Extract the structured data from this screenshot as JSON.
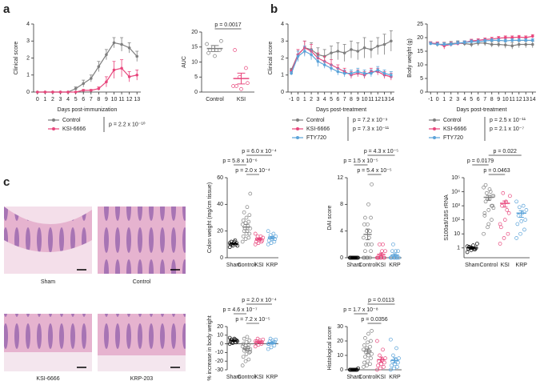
{
  "panel_labels": [
    "a",
    "b",
    "c"
  ],
  "histology": {
    "labels": [
      "Sham",
      "Control",
      "KSI-6666",
      "KRP-203"
    ]
  },
  "chart_data": [
    {
      "type": "line",
      "y_label": "Clinical score",
      "x_label": "Days post-immunization",
      "x": [
        0,
        1,
        2,
        3,
        4,
        5,
        6,
        7,
        8,
        9,
        10,
        11,
        12,
        13
      ],
      "xlim": [
        -0.5,
        13.5
      ],
      "xticks": [
        0,
        1,
        2,
        3,
        4,
        5,
        6,
        7,
        8,
        9,
        10,
        11,
        12,
        13
      ],
      "ylim": [
        0,
        4
      ],
      "yticks": [
        0,
        1,
        2,
        3,
        4
      ],
      "series": [
        {
          "name": "Control",
          "color": "#7f7f7f",
          "values": [
            0,
            0,
            0,
            0,
            0,
            0.2,
            0.5,
            0.8,
            1.5,
            2.2,
            2.9,
            2.8,
            2.6,
            2.1
          ],
          "errors": [
            0,
            0,
            0,
            0,
            0,
            0.1,
            0.2,
            0.2,
            0.3,
            0.3,
            0.3,
            0.4,
            0.3,
            0.3
          ]
        },
        {
          "name": "KSI-6666",
          "color": "#e8467c",
          "values": [
            0,
            0,
            0,
            0,
            0,
            0,
            0.1,
            0.1,
            0.2,
            0.6,
            1.3,
            1.4,
            0.9,
            1.0
          ],
          "errors": [
            0,
            0,
            0,
            0,
            0,
            0,
            0.05,
            0.05,
            0.1,
            0.3,
            0.5,
            0.5,
            0.3,
            0.3
          ]
        }
      ],
      "legend_p": [
        "p = 2.2 x 10⁻¹⁰"
      ]
    },
    {
      "type": "dot",
      "y_label": "AUC",
      "categories": [
        "Control",
        "KSI"
      ],
      "colors": [
        "#7f7f7f",
        "#e8467c"
      ],
      "values": [
        [
          16,
          15,
          14,
          13,
          12,
          17,
          14
        ],
        [
          2,
          5,
          8,
          14,
          1,
          3,
          2
        ]
      ],
      "means": [
        14.5,
        4.5
      ],
      "sems": [
        1.0,
        1.8
      ],
      "ylim": [
        0,
        20
      ],
      "yticks": [
        0,
        5,
        10,
        15,
        20
      ],
      "comparisons": [
        {
          "label": "p = 0.0017",
          "groups": [
            0,
            1
          ]
        }
      ]
    },
    {
      "type": "line",
      "y_label": "Clinical score",
      "x_label": "Days post-treatment",
      "x": [
        -1,
        0,
        1,
        2,
        3,
        4,
        5,
        6,
        7,
        8,
        9,
        10,
        11,
        12,
        13,
        14
      ],
      "xlim": [
        -1.5,
        14.5
      ],
      "xticks": [
        -1,
        0,
        1,
        2,
        3,
        4,
        5,
        6,
        7,
        8,
        9,
        10,
        11,
        12,
        13,
        14
      ],
      "ylim": [
        0,
        4
      ],
      "yticks": [
        0,
        1,
        2,
        3,
        4
      ],
      "series": [
        {
          "name": "Control",
          "color": "#7f7f7f",
          "values": [
            1.3,
            2.2,
            2.6,
            2.5,
            2.2,
            2.1,
            2.3,
            2.4,
            2.3,
            2.5,
            2.4,
            2.6,
            2.5,
            2.7,
            2.8,
            3.0
          ],
          "errors": [
            0.1,
            0.3,
            0.4,
            0.4,
            0.4,
            0.4,
            0.4,
            0.5,
            0.5,
            0.5,
            0.5,
            0.6,
            0.5,
            0.5,
            0.6,
            0.6
          ]
        },
        {
          "name": "KSI-6666",
          "color": "#e8467c",
          "values": [
            1.2,
            2.2,
            2.6,
            2.4,
            2.0,
            1.8,
            1.6,
            1.4,
            1.2,
            1.0,
            1.1,
            1.0,
            1.2,
            1.2,
            1.0,
            0.9
          ],
          "errors": [
            0.1,
            0.3,
            0.4,
            0.4,
            0.3,
            0.3,
            0.3,
            0.2,
            0.2,
            0.2,
            0.2,
            0.2,
            0.2,
            0.2,
            0.2,
            0.2
          ]
        },
        {
          "name": "FTY720",
          "color": "#5ba3d9",
          "values": [
            1.1,
            2.1,
            2.4,
            2.2,
            1.8,
            1.6,
            1.4,
            1.2,
            1.1,
            1.1,
            1.2,
            1.1,
            1.1,
            1.3,
            1.1,
            1.0
          ],
          "errors": [
            0.1,
            0.3,
            0.3,
            0.3,
            0.3,
            0.2,
            0.2,
            0.2,
            0.2,
            0.2,
            0.2,
            0.2,
            0.2,
            0.2,
            0.2,
            0.2
          ]
        }
      ],
      "legend_p": [
        "p = 7.2 x 10⁻⁹",
        "p = 7.3 x 10⁻¹¹"
      ]
    },
    {
      "type": "line",
      "y_label": "Body weight (g)",
      "x_label": "Days post-treatment",
      "x": [
        -1,
        0,
        1,
        2,
        3,
        4,
        5,
        6,
        7,
        8,
        9,
        10,
        11,
        12,
        13,
        14
      ],
      "xlim": [
        -1.5,
        14.5
      ],
      "xticks": [
        -1,
        0,
        1,
        2,
        3,
        4,
        5,
        6,
        7,
        8,
        9,
        10,
        11,
        12,
        13,
        14
      ],
      "ylim": [
        0,
        25
      ],
      "yticks": [
        0,
        5,
        10,
        15,
        20,
        25
      ],
      "series": [
        {
          "name": "Control",
          "color": "#7f7f7f",
          "values": [
            18,
            17.5,
            17.5,
            17.8,
            18,
            17.8,
            17.5,
            18,
            18,
            17.5,
            17.5,
            17.3,
            17,
            17.5,
            17.5,
            17.5
          ],
          "errors": [
            0.5,
            0.8,
            0.8,
            0.8,
            0.8,
            0.8,
            1,
            1,
            1,
            1,
            1,
            1.2,
            1.2,
            1.2,
            1.2,
            1.2
          ]
        },
        {
          "name": "KSI-6666",
          "color": "#e8467c",
          "values": [
            18,
            17.8,
            17,
            17.5,
            17.8,
            18.2,
            18.8,
            19,
            19.3,
            19.5,
            19.8,
            20,
            20,
            20.2,
            20,
            20.5
          ],
          "errors": [
            0.5,
            0.6,
            1.2,
            0.8,
            0.6,
            0.6,
            0.6,
            0.6,
            0.6,
            0.6,
            0.6,
            0.6,
            0.6,
            0.6,
            0.6,
            0.6
          ]
        },
        {
          "name": "FTY720",
          "color": "#5ba3d9",
          "values": [
            17.8,
            17.5,
            17.5,
            17.5,
            18,
            18.2,
            18.5,
            18.5,
            18.8,
            19,
            19,
            18.8,
            19,
            19,
            19,
            19
          ],
          "errors": [
            0.5,
            0.6,
            0.6,
            0.6,
            0.6,
            0.6,
            0.6,
            0.6,
            0.6,
            0.6,
            0.6,
            0.6,
            0.6,
            0.6,
            0.6,
            0.6
          ]
        }
      ],
      "legend_p": [
        "p = 2.5 x 10⁻¹¹",
        "p = 2.1 x 10⁻⁷"
      ]
    },
    {
      "type": "dot",
      "y_label": "Colon weight (mg/cm tissue)",
      "categories": [
        "Sham",
        "Control",
        "KSI",
        "KRP"
      ],
      "colors": [
        "#000000",
        "#7f7f7f",
        "#e8467c",
        "#5ba3d9"
      ],
      "values": [
        [
          8,
          9,
          10,
          10,
          11,
          11,
          12,
          12,
          9,
          10,
          13,
          11
        ],
        [
          12,
          14,
          15,
          16,
          18,
          18,
          20,
          20,
          22,
          22,
          24,
          25,
          26,
          27,
          28,
          30,
          32,
          34,
          38,
          48
        ],
        [
          10,
          11,
          12,
          12,
          13,
          13,
          14,
          14,
          15,
          16,
          16,
          18
        ],
        [
          10,
          11,
          12,
          13,
          14,
          14,
          15,
          15,
          16,
          17,
          18,
          20
        ]
      ],
      "means": [
        10.5,
        23,
        14,
        15
      ],
      "sems": [
        0.5,
        2,
        0.7,
        0.8
      ],
      "ylim": [
        0,
        60
      ],
      "yticks": [
        0,
        20,
        40,
        60
      ],
      "comparisons": [
        {
          "label": "p = 2.0 x 10⁻⁴",
          "groups": [
            1,
            2
          ]
        },
        {
          "label": "p = 5.8 x 10⁻⁶",
          "groups": [
            0,
            1
          ]
        },
        {
          "label": "p = 6.0 x 10⁻⁴",
          "groups": [
            1,
            3
          ]
        }
      ]
    },
    {
      "type": "dot",
      "y_label": "DAI score",
      "categories": [
        "Sham",
        "Control",
        "KSI",
        "KRP"
      ],
      "colors": [
        "#000000",
        "#7f7f7f",
        "#e8467c",
        "#5ba3d9"
      ],
      "values": [
        [
          0,
          0,
          0,
          0,
          0,
          0,
          0,
          0,
          0,
          0,
          0,
          0
        ],
        [
          0,
          0,
          0,
          0,
          0,
          1,
          1,
          2,
          2,
          2,
          3,
          3,
          4,
          4,
          5,
          5,
          6,
          6,
          8,
          11
        ],
        [
          0,
          0,
          0,
          0,
          0,
          0,
          0,
          1,
          1,
          2,
          2,
          0
        ],
        [
          0,
          0,
          0,
          0,
          0,
          1,
          1,
          1,
          0,
          2,
          0,
          0
        ]
      ],
      "means": [
        0,
        3.5,
        0.5,
        0.4
      ],
      "sems": [
        0,
        0.8,
        0.2,
        0.2
      ],
      "ylim": [
        0,
        12
      ],
      "yticks": [
        0,
        4,
        8,
        12
      ],
      "comparisons": [
        {
          "label": "p = 5.4 x 10⁻⁵",
          "groups": [
            1,
            2
          ]
        },
        {
          "label": "p = 1.5 x 10⁻⁵",
          "groups": [
            0,
            1
          ]
        },
        {
          "label": "p = 4.3 x 10⁻⁵",
          "groups": [
            1,
            3
          ]
        }
      ]
    },
    {
      "type": "dot",
      "y_label": "S100a9/18S rRNA",
      "log_scale": true,
      "categories": [
        "Sham",
        "Control",
        "KSI",
        "KRP"
      ],
      "colors": [
        "#000000",
        "#7f7f7f",
        "#e8467c",
        "#5ba3d9"
      ],
      "values": [
        [
          0.5,
          0.7,
          0.8,
          0.9,
          1,
          1,
          1.2,
          1.5,
          2,
          1,
          0.8,
          1.3
        ],
        [
          10,
          30,
          100,
          300,
          500,
          1000,
          2000,
          3000,
          5000,
          8000,
          10000,
          20000,
          3000,
          1000,
          200,
          50,
          5000,
          30000,
          15000,
          700
        ],
        [
          2,
          5,
          10,
          30,
          100,
          300,
          1000,
          2000,
          5000,
          8000,
          500,
          50
        ],
        [
          5,
          10,
          20,
          50,
          80,
          100,
          200,
          300,
          500,
          800,
          1000,
          2000
        ]
      ],
      "means": [
        1,
        4000,
        1500,
        300
      ],
      "sems": [
        0.15,
        1500,
        700,
        150
      ],
      "ylim": [
        0.2,
        100000
      ],
      "yticks": [
        1,
        10,
        {
          "value": 100,
          "label": "10²"
        },
        {
          "value": 1000,
          "label": "10³"
        },
        {
          "value": 10000,
          "label": "10⁴"
        },
        {
          "value": 100000,
          "label": "10⁵"
        }
      ],
      "comparisons": [
        {
          "label": "p = 0.0463",
          "groups": [
            1,
            2
          ]
        },
        {
          "label": "p = 0.0179",
          "groups": [
            0,
            1
          ]
        },
        {
          "label": "p = 0.022",
          "groups": [
            1,
            3
          ]
        }
      ]
    },
    {
      "type": "dot",
      "y_label": "% increase in body weight",
      "categories": [
        "Sham",
        "Control",
        "KSI",
        "KRP"
      ],
      "colors": [
        "#000000",
        "#7f7f7f",
        "#e8467c",
        "#5ba3d9"
      ],
      "values": [
        [
          0,
          1,
          2,
          3,
          4,
          4,
          5,
          6,
          3,
          2,
          5,
          7
        ],
        [
          -25,
          -20,
          -18,
          -15,
          -12,
          -10,
          -8,
          -7,
          -6,
          -5,
          -4,
          -3,
          -2,
          -1,
          0,
          2,
          4,
          6,
          8,
          -9
        ],
        [
          -3,
          -1,
          0,
          1,
          2,
          2,
          3,
          4,
          5,
          6,
          2,
          3
        ],
        [
          -6,
          -4,
          -2,
          0,
          1,
          2,
          3,
          4,
          5,
          6,
          2,
          0
        ]
      ],
      "means": [
        3.5,
        -5.5,
        2,
        1
      ],
      "sems": [
        0.6,
        2,
        0.8,
        1
      ],
      "ylim": [
        -30,
        20
      ],
      "yticks": [
        -30,
        -20,
        -10,
        0,
        10,
        20
      ],
      "comparisons": [
        {
          "label": "p = 7.2 x 10⁻⁵",
          "groups": [
            1,
            2
          ]
        },
        {
          "label": "p = 4.6 x 10⁻⁷",
          "groups": [
            0,
            1
          ]
        },
        {
          "label": "p = 2.0 x 10⁻⁴",
          "groups": [
            1,
            3
          ]
        }
      ]
    },
    {
      "type": "dot",
      "y_label": "Histological score",
      "categories": [
        "Sham",
        "Control",
        "KSI",
        "KRP"
      ],
      "colors": [
        "#000000",
        "#7f7f7f",
        "#e8467c",
        "#5ba3d9"
      ],
      "values": [
        [
          0,
          0,
          0,
          0,
          0,
          0,
          0,
          0,
          1,
          0,
          0,
          0
        ],
        [
          2,
          3,
          4,
          5,
          6,
          8,
          9,
          10,
          11,
          12,
          13,
          14,
          15,
          16,
          17,
          19,
          20,
          22,
          25,
          27
        ],
        [
          0,
          1,
          2,
          3,
          4,
          5,
          6,
          7,
          8,
          10,
          14,
          20
        ],
        [
          0,
          1,
          2,
          3,
          4,
          5,
          6,
          7,
          8,
          10,
          15,
          21
        ]
      ],
      "means": [
        0.1,
        13,
        7,
        6.5
      ],
      "sems": [
        0.1,
        1.5,
        1.8,
        1.8
      ],
      "ylim": [
        0,
        30
      ],
      "yticks": [
        0,
        10,
        20,
        30
      ],
      "comparisons": [
        {
          "label": "p = 0.0356",
          "groups": [
            1,
            2
          ]
        },
        {
          "label": "p = 1.7 x 10⁻⁸",
          "groups": [
            0,
            1
          ]
        },
        {
          "label": "p = 0.0113",
          "groups": [
            1,
            3
          ]
        }
      ]
    }
  ]
}
